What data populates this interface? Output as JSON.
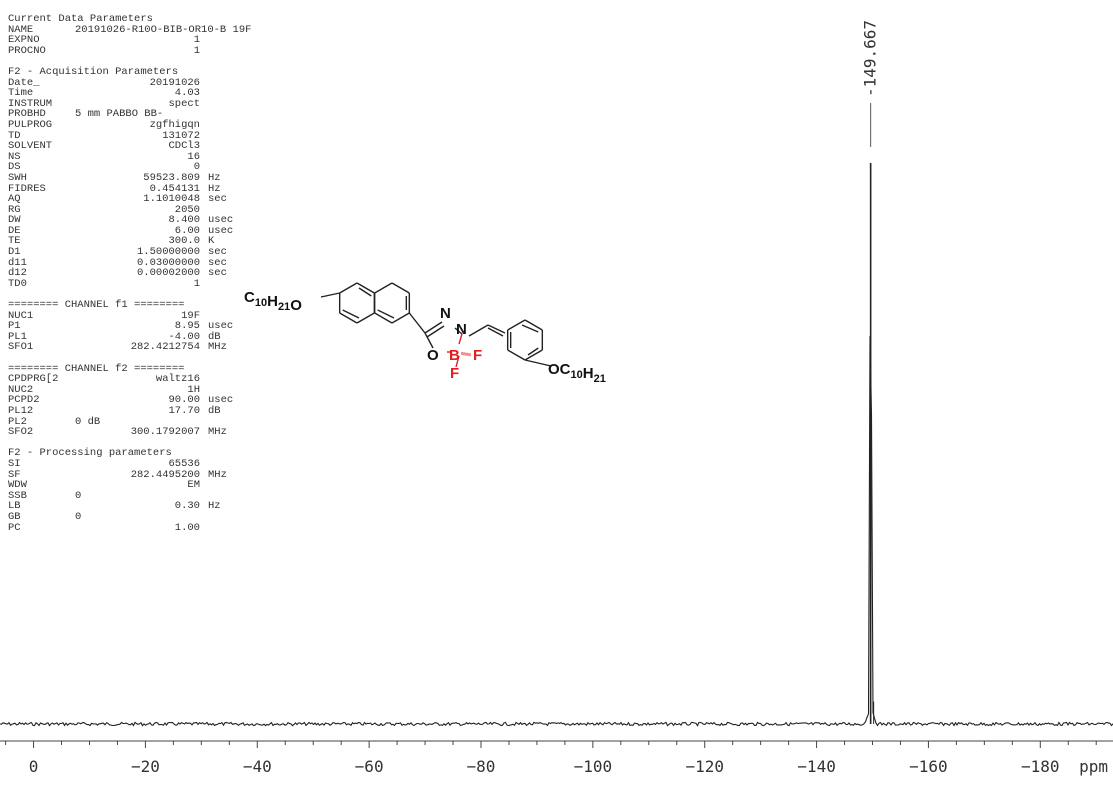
{
  "header": {
    "title": "Current Data Parameters",
    "rows": [
      {
        "key": "NAME",
        "val": "20191026-R10O-BIB-OR10-B 19F",
        "unit": ""
      },
      {
        "key": "EXPNO",
        "val": "1",
        "unit": ""
      },
      {
        "key": "PROCNO",
        "val": "1",
        "unit": ""
      }
    ]
  },
  "acquisition": {
    "title": "F2 - Acquisition Parameters",
    "rows": [
      {
        "key": "Date_",
        "val": "20191026",
        "unit": ""
      },
      {
        "key": "Time",
        "val": "4.03",
        "unit": ""
      },
      {
        "key": "INSTRUM",
        "val": "spect",
        "unit": ""
      },
      {
        "key": "PROBHD",
        "val": "5 mm PABBO BB-",
        "unit": ""
      },
      {
        "key": "PULPROG",
        "val": "zgfhigqn",
        "unit": ""
      },
      {
        "key": "TD",
        "val": "131072",
        "unit": ""
      },
      {
        "key": "SOLVENT",
        "val": "CDCl3",
        "unit": ""
      },
      {
        "key": "NS",
        "val": "16",
        "unit": ""
      },
      {
        "key": "DS",
        "val": "0",
        "unit": ""
      },
      {
        "key": "SWH",
        "val": "59523.809",
        "unit": "Hz"
      },
      {
        "key": "FIDRES",
        "val": "0.454131",
        "unit": "Hz"
      },
      {
        "key": "AQ",
        "val": "1.1010048",
        "unit": "sec"
      },
      {
        "key": "RG",
        "val": "2050",
        "unit": ""
      },
      {
        "key": "DW",
        "val": "8.400",
        "unit": "usec"
      },
      {
        "key": "DE",
        "val": "6.00",
        "unit": "usec"
      },
      {
        "key": "TE",
        "val": "300.0",
        "unit": "K"
      },
      {
        "key": "D1",
        "val": "1.50000000",
        "unit": "sec"
      },
      {
        "key": "d11",
        "val": "0.03000000",
        "unit": "sec"
      },
      {
        "key": "d12",
        "val": "0.00002000",
        "unit": "sec"
      },
      {
        "key": "TD0",
        "val": "1",
        "unit": ""
      }
    ]
  },
  "channel_f1": {
    "title": "======== CHANNEL f1 ========",
    "rows": [
      {
        "key": "NUC1",
        "val": "19F",
        "unit": ""
      },
      {
        "key": "P1",
        "val": "8.95",
        "unit": "usec"
      },
      {
        "key": "PL1",
        "val": "-4.00",
        "unit": "dB"
      },
      {
        "key": "SFO1",
        "val": "282.4212754",
        "unit": "MHz"
      }
    ]
  },
  "channel_f2": {
    "title": "======== CHANNEL f2 ========",
    "rows": [
      {
        "key": "CPDPRG[2",
        "val": "waltz16",
        "unit": ""
      },
      {
        "key": "NUC2",
        "val": "1H",
        "unit": ""
      },
      {
        "key": "PCPD2",
        "val": "90.00",
        "unit": "usec"
      },
      {
        "key": "PL12",
        "val": "17.70",
        "unit": "dB"
      },
      {
        "key": "PL2",
        "val": "0 dB",
        "unit": ""
      },
      {
        "key": "SFO2",
        "val": "300.1792007",
        "unit": "MHz"
      }
    ]
  },
  "processing": {
    "title": "F2 - Processing parameters",
    "rows": [
      {
        "key": "SI",
        "val": "65536",
        "unit": ""
      },
      {
        "key": "SF",
        "val": "282.4495200",
        "unit": "MHz"
      },
      {
        "key": "WDW",
        "val": "EM",
        "unit": ""
      },
      {
        "key": "SSB",
        "val": "0",
        "unit": ""
      },
      {
        "key": "LB",
        "val": "0.30",
        "unit": "Hz"
      },
      {
        "key": "GB",
        "val": "0",
        "unit": ""
      },
      {
        "key": "PC",
        "val": "1.00",
        "unit": ""
      }
    ]
  },
  "molecule": {
    "left_group": "C10H21O",
    "right_group": "OC10H21",
    "atoms": {
      "N1": "N",
      "N2": "N",
      "O": "O",
      "B": "B",
      "F1": "F",
      "F2": "F"
    },
    "heteroatom_color": "#e02020"
  },
  "chart_data": {
    "type": "line",
    "title": "",
    "xlabel": "ppm",
    "ylabel": "",
    "xlim": [
      6,
      -193
    ],
    "x_ticks": [
      0,
      -20,
      -40,
      -60,
      -80,
      -100,
      -120,
      -140,
      -160,
      -180
    ],
    "x_tick_labels": [
      "0",
      "−20",
      "−40",
      "−60",
      "−80",
      "−100",
      "−120",
      "−140",
      "−160",
      "−180"
    ],
    "x_unit_label": "ppm",
    "series": [
      {
        "x": [
          6,
          -148.5,
          -149.3,
          -149.667,
          -150.0,
          -150.8,
          -193
        ],
        "y": [
          0,
          0,
          0.02,
          1.0,
          0.02,
          0,
          0
        ]
      }
    ],
    "peaks": [
      {
        "x": -149.667,
        "label": "-149.667"
      }
    ],
    "colors": {
      "trace": "#222222",
      "axis": "#444444"
    }
  }
}
